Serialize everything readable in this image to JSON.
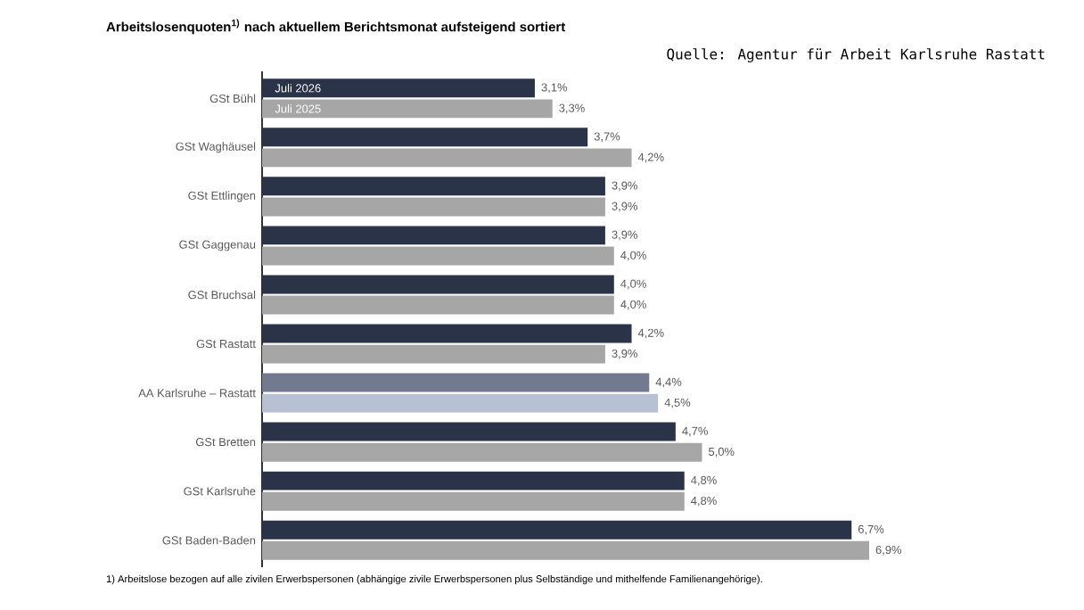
{
  "chart_data": {
    "type": "bar",
    "orientation": "horizontal",
    "title": "Arbeitslosenquoten$^{1)}$ nach aktuellem Berichtsmonat aufsteigend sortiert",
    "annotations": [
      "Quelle: Agentur für Arbeit Karlsruhe Rastatt",
      "1) Arbeitslose bezogen auf alle zivilen Erwerbspersonen (abhängige zivile Erwerbspersonen plus Selbständige und mithelfende Familienangehörige)."
    ],
    "categories": [
      "GSt Bühl",
      "GSt Waghäusel",
      "GSt Ettlingen",
      "GSt Gaggenau",
      "GSt Bruchsal",
      "GSt Rastatt",
      "AA Karlsruhe – Rastatt",
      "GSt Bretten",
      "GSt Karlsruhe",
      "GSt Baden-Baden"
    ],
    "series": [
      {
        "name": "Juli 2026",
        "color": "#2b3349",
        "colors": [
          null,
          null,
          null,
          null,
          null,
          null,
          "#737a90",
          null,
          null,
          null
        ],
        "values": [
          3.1,
          3.7,
          3.9,
          3.9,
          4.0,
          4.2,
          4.4,
          4.7,
          4.8,
          6.7
        ],
        "value_labels": [
          "3,1%",
          "3,7%",
          "3,9%",
          "3,9%",
          "4,0%",
          "4,2%",
          "4,4%",
          "4,7%",
          "4,8%",
          "6,7%"
        ]
      },
      {
        "name": "Juli 2025",
        "color": "#a6a6a6",
        "colors": [
          null,
          null,
          null,
          null,
          null,
          null,
          "#b8c0d4",
          null,
          null,
          null
        ],
        "values": [
          3.3,
          4.2,
          3.9,
          4.0,
          4.0,
          3.9,
          4.5,
          5.0,
          4.8,
          6.9
        ],
        "value_labels": [
          "3,3%",
          "4,2%",
          "3,9%",
          "4,0%",
          "4,0%",
          "3,9%",
          "4,5%",
          "5,0%",
          "4,8%",
          "6,9%"
        ]
      }
    ]
  }
}
